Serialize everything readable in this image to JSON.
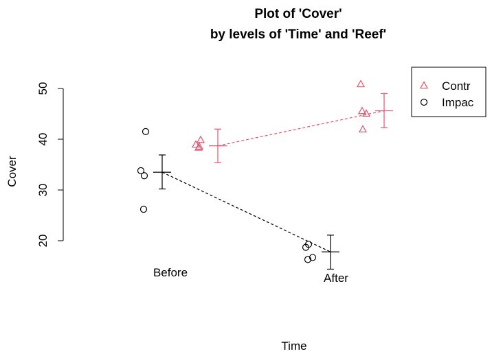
{
  "chart_data": {
    "type": "scatter",
    "title": [
      "Plot of 'Cover'",
      "by levels of 'Time' and 'Reef'"
    ],
    "xlabel": "Time",
    "ylabel": "Cover",
    "categories": [
      "Before",
      "After"
    ],
    "y_ticks": [
      20,
      30,
      40,
      50
    ],
    "ylim": [
      15,
      58
    ],
    "legend_position": "top-right",
    "series": [
      {
        "name": "Contr",
        "color": "#DF536B",
        "marker": "triangle-icon",
        "line_style": "dashed",
        "points": [
          {
            "time": "Before",
            "values": [
              38.9,
              39.8,
              38.5,
              38.3
            ]
          },
          {
            "time": "After",
            "values": [
              50.8,
              45.5,
              45.0,
              41.9
            ]
          }
        ],
        "means": [
          {
            "time": "Before",
            "mean": 38.7,
            "ci": [
              35.4,
              42.0
            ]
          },
          {
            "time": "After",
            "mean": 45.6,
            "ci": [
              42.3,
              49.0
            ]
          }
        ]
      },
      {
        "name": "Impac",
        "color": "#000000",
        "marker": "circle-icon",
        "line_style": "dashed",
        "points": [
          {
            "time": "Before",
            "values": [
              41.5,
              33.8,
              32.8,
              26.2
            ]
          },
          {
            "time": "After",
            "values": [
              19.3,
              18.7,
              16.7,
              16.3
            ]
          }
        ],
        "means": [
          {
            "time": "Before",
            "mean": 33.5,
            "ci": [
              30.2,
              36.9
            ]
          },
          {
            "time": "After",
            "mean": 17.8,
            "ci": [
              14.4,
              21.1
            ]
          }
        ]
      }
    ]
  }
}
